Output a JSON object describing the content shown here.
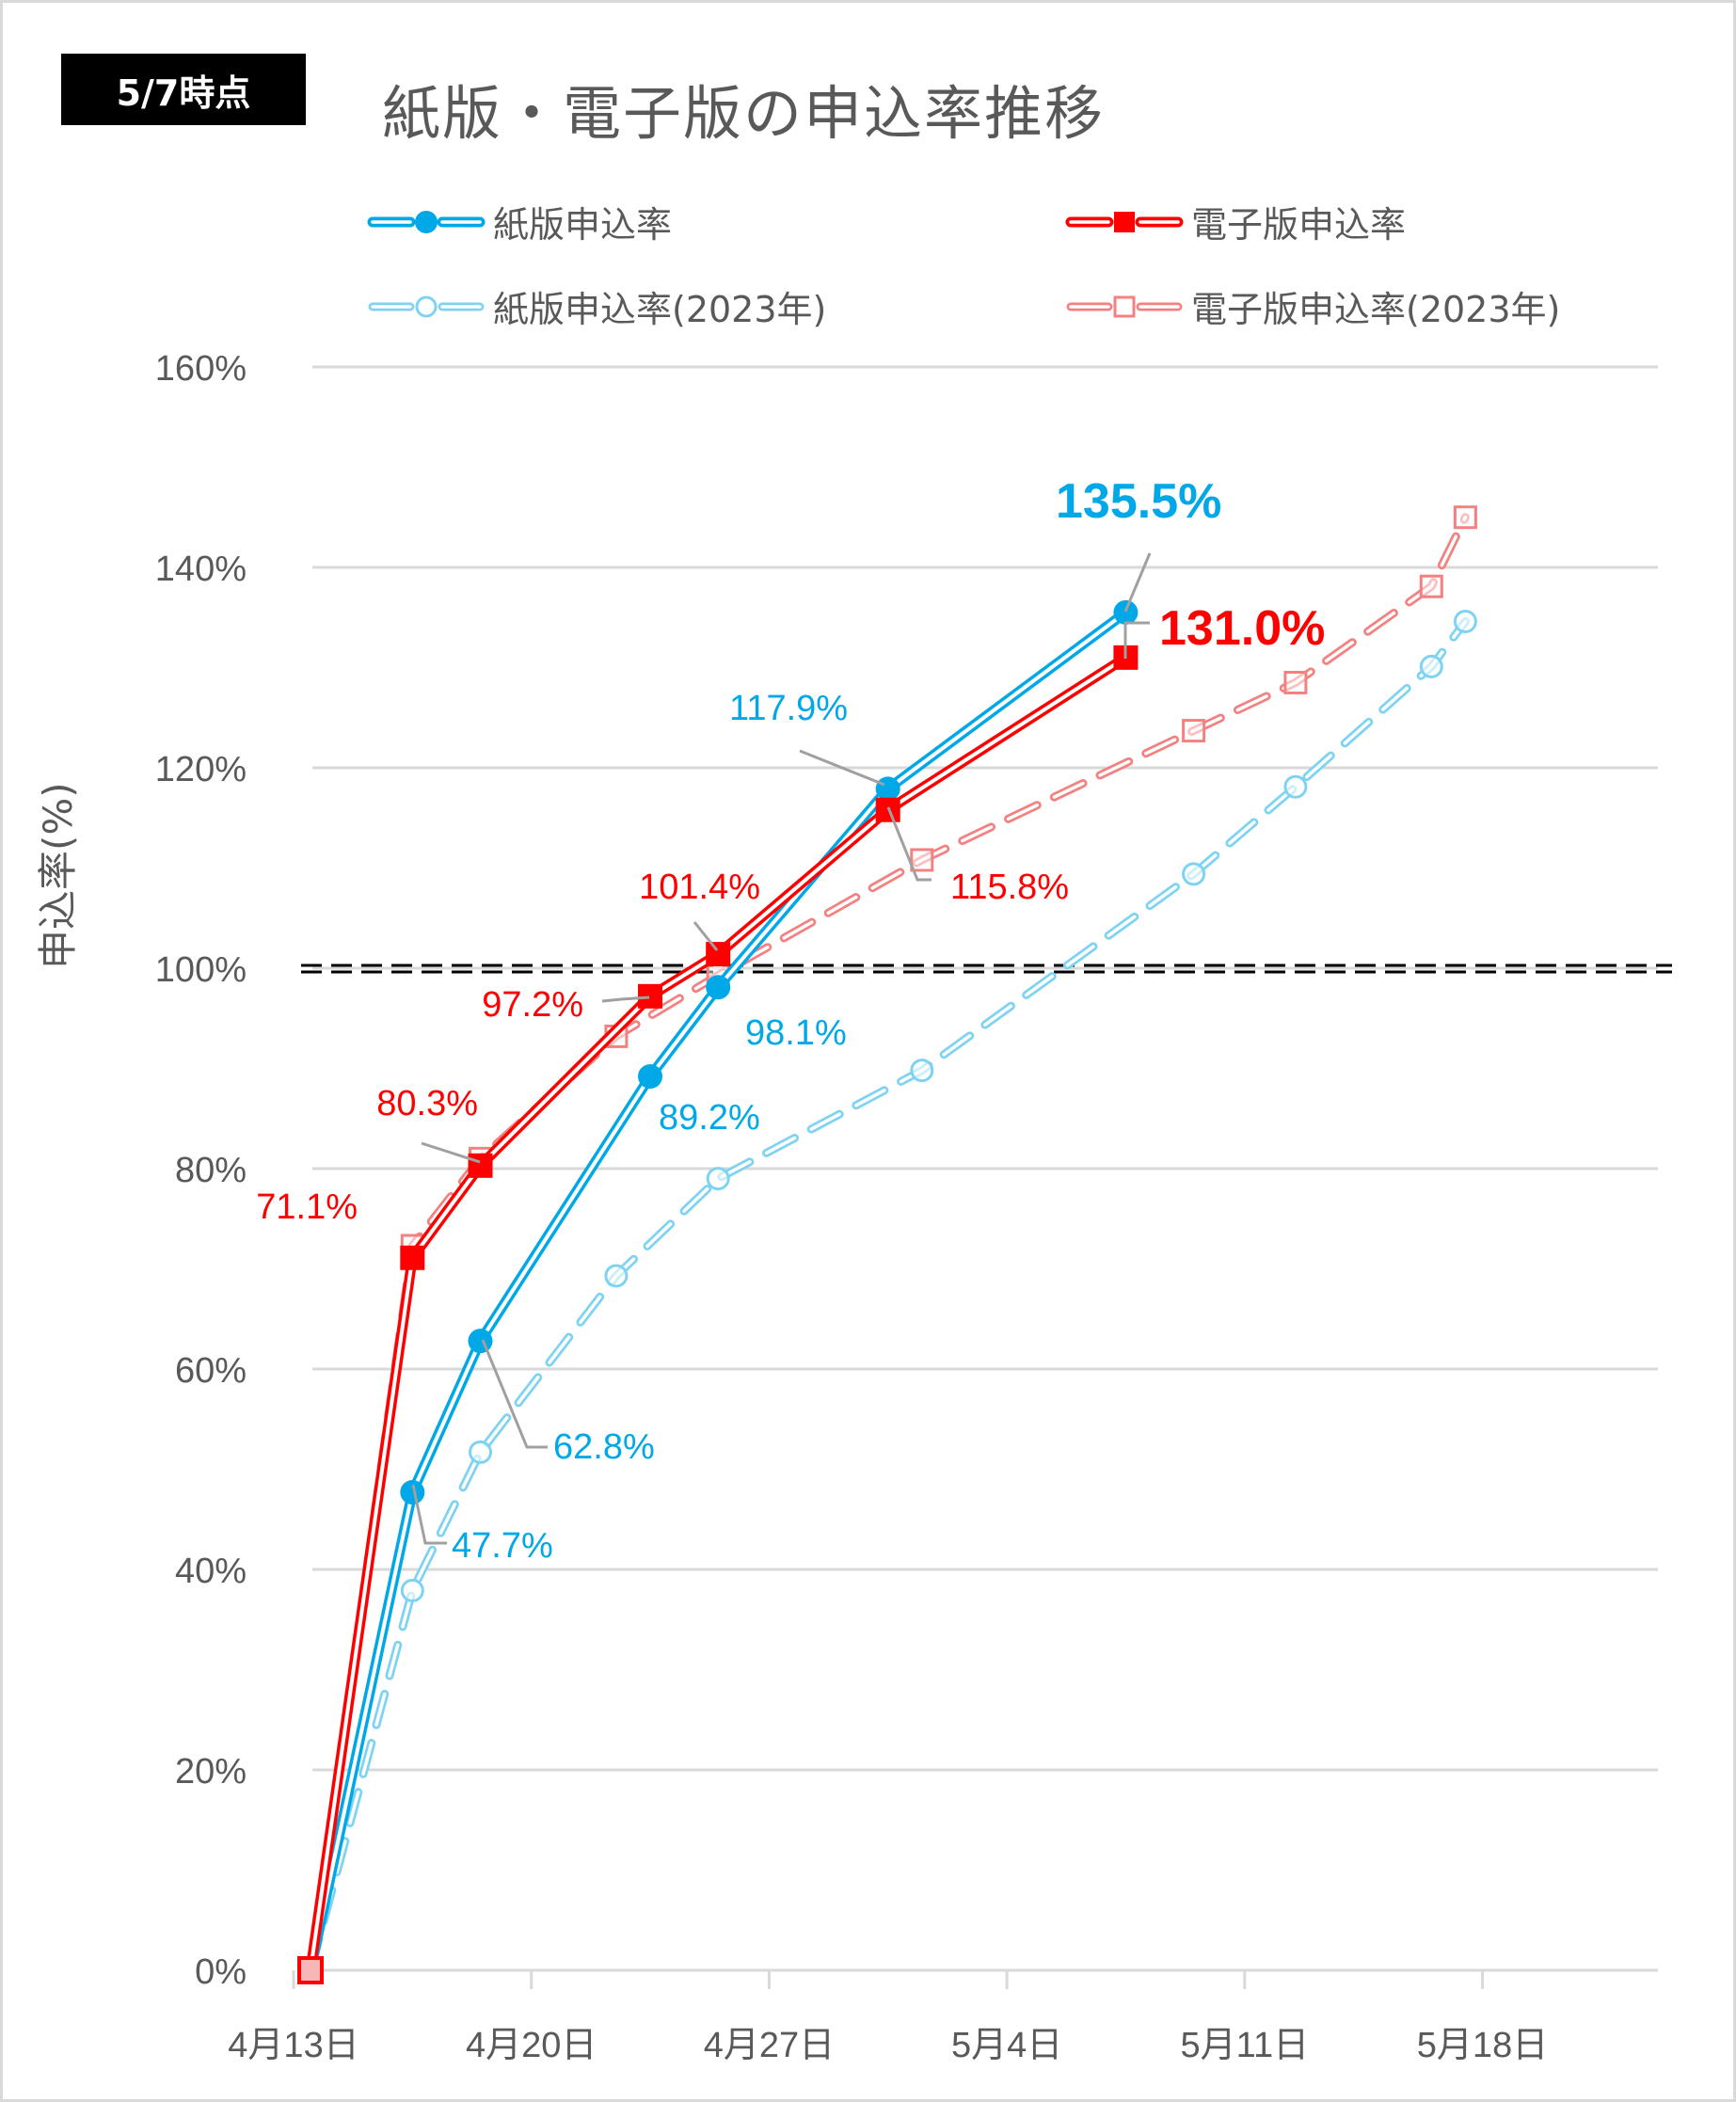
{
  "badge": "5/7時点",
  "title": "紙版・電子版の申込率推移",
  "legend": [
    {
      "label": "紙版申込率",
      "series": 0
    },
    {
      "label": "電子版申込率",
      "series": 1
    },
    {
      "label": "紙版申込率(2023年)",
      "series": 2
    },
    {
      "label": "電子版申込率(2023年)",
      "series": 3
    }
  ],
  "colors": {
    "paper": "#00a8e8",
    "digital": "#ff0000",
    "paper_2023": "#7fd3f2",
    "digital_2023": "#f48080",
    "grid": "#d9d9d9",
    "axis_text": "#595959",
    "leader": "#a0a0a0",
    "target_line": "#000000"
  },
  "chart_data": {
    "type": "line",
    "title": "紙版・電子版の申込率推移",
    "xlabel": "",
    "ylabel": "申込率(%)",
    "ylim": [
      0,
      160
    ],
    "yticks": [
      0,
      20,
      40,
      60,
      80,
      100,
      120,
      140,
      160
    ],
    "ytick_labels": [
      "0%",
      "20%",
      "40%",
      "60%",
      "80%",
      "100%",
      "120%",
      "140%",
      "160%"
    ],
    "xlim_days_from_apr13": [
      0,
      40
    ],
    "xticks_days": [
      0,
      7,
      14,
      21,
      28,
      35
    ],
    "xtick_labels": [
      "4月13日",
      "4月20日",
      "4月27日",
      "5月4日",
      "5月11日",
      "5月18日"
    ],
    "grid": true,
    "legend_position": "top",
    "reference_line": {
      "y": 100,
      "style": "double-dashed"
    },
    "series": [
      {
        "name": "紙版申込率",
        "style": "solid-double",
        "marker": "circle-filled",
        "x": [
          "4/13",
          "4/16",
          "4/18",
          "4/23",
          "4/25",
          "4/30",
          "5/7"
        ],
        "day": [
          0,
          3,
          5,
          10,
          12,
          17,
          24
        ],
        "values": [
          0,
          47.7,
          62.8,
          89.2,
          98.1,
          117.9,
          135.5
        ],
        "labels": [
          "",
          "47.7%",
          "62.8%",
          "89.2%",
          "98.1%",
          "117.9%",
          "135.5%"
        ]
      },
      {
        "name": "電子版申込率",
        "style": "solid-double",
        "marker": "square-filled",
        "x": [
          "4/13",
          "4/16",
          "4/18",
          "4/23",
          "4/25",
          "4/30",
          "5/7"
        ],
        "day": [
          0,
          3,
          5,
          10,
          12,
          17,
          24
        ],
        "values": [
          0,
          71.1,
          80.3,
          97.2,
          101.4,
          115.8,
          131.0
        ],
        "labels": [
          "",
          "71.1%",
          "80.3%",
          "97.2%",
          "101.4%",
          "115.8%",
          "131.0%"
        ]
      },
      {
        "name": "紙版申込率(2023年)",
        "style": "dashed-double",
        "marker": "circle-open",
        "x": [
          "4/13",
          "4/16",
          "4/18",
          "4/22",
          "4/25",
          "5/1",
          "5/9",
          "5/12",
          "5/16",
          "5/17"
        ],
        "day": [
          0,
          3,
          5,
          9,
          12,
          18,
          26,
          29,
          33,
          34
        ],
        "values": [
          0,
          37.9,
          51.7,
          69.3,
          79.0,
          89.8,
          109.4,
          118.1,
          130.1,
          134.6
        ]
      },
      {
        "name": "電子版申込率(2023年)",
        "style": "dashed-double",
        "marker": "square-open",
        "x": [
          "4/13",
          "4/16",
          "4/18",
          "4/22",
          "4/25",
          "5/1",
          "5/9",
          "5/12",
          "5/16",
          "5/17"
        ],
        "day": [
          0,
          3,
          5,
          9,
          12,
          18,
          26,
          29,
          33,
          34
        ],
        "values": [
          0,
          72.3,
          81.0,
          93.2,
          99.3,
          110.8,
          123.7,
          128.5,
          138.1,
          145.0
        ]
      }
    ]
  }
}
